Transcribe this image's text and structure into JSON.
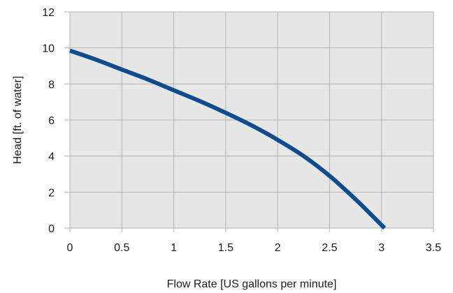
{
  "chart_data": {
    "type": "line",
    "title": "",
    "xlabel": "Flow  Rate [US gallons per minute]",
    "ylabel": "Head [ft. of water]",
    "xlim": [
      0,
      3.5
    ],
    "ylim": [
      0,
      12
    ],
    "x_ticks": [
      "0",
      "0.5",
      "1",
      "1.5",
      "2",
      "2.5",
      "3",
      "3.5"
    ],
    "y_ticks": [
      "0",
      "2",
      "4",
      "6",
      "8",
      "10",
      "12"
    ],
    "grid": true,
    "legend": "none",
    "colors": {
      "line": "#0e4c8c",
      "plot_background": "#e6e6e6",
      "grid": "#b3b3b3"
    },
    "series": [
      {
        "x": [
          0,
          0.25,
          0.5,
          0.75,
          1.0,
          1.25,
          1.5,
          1.75,
          2.0,
          2.25,
          2.5,
          2.75,
          2.9,
          3.03
        ],
        "y": [
          9.85,
          9.35,
          8.8,
          8.25,
          7.65,
          7.05,
          6.4,
          5.7,
          4.9,
          4.0,
          2.9,
          1.6,
          0.75,
          0.0
        ]
      }
    ]
  }
}
